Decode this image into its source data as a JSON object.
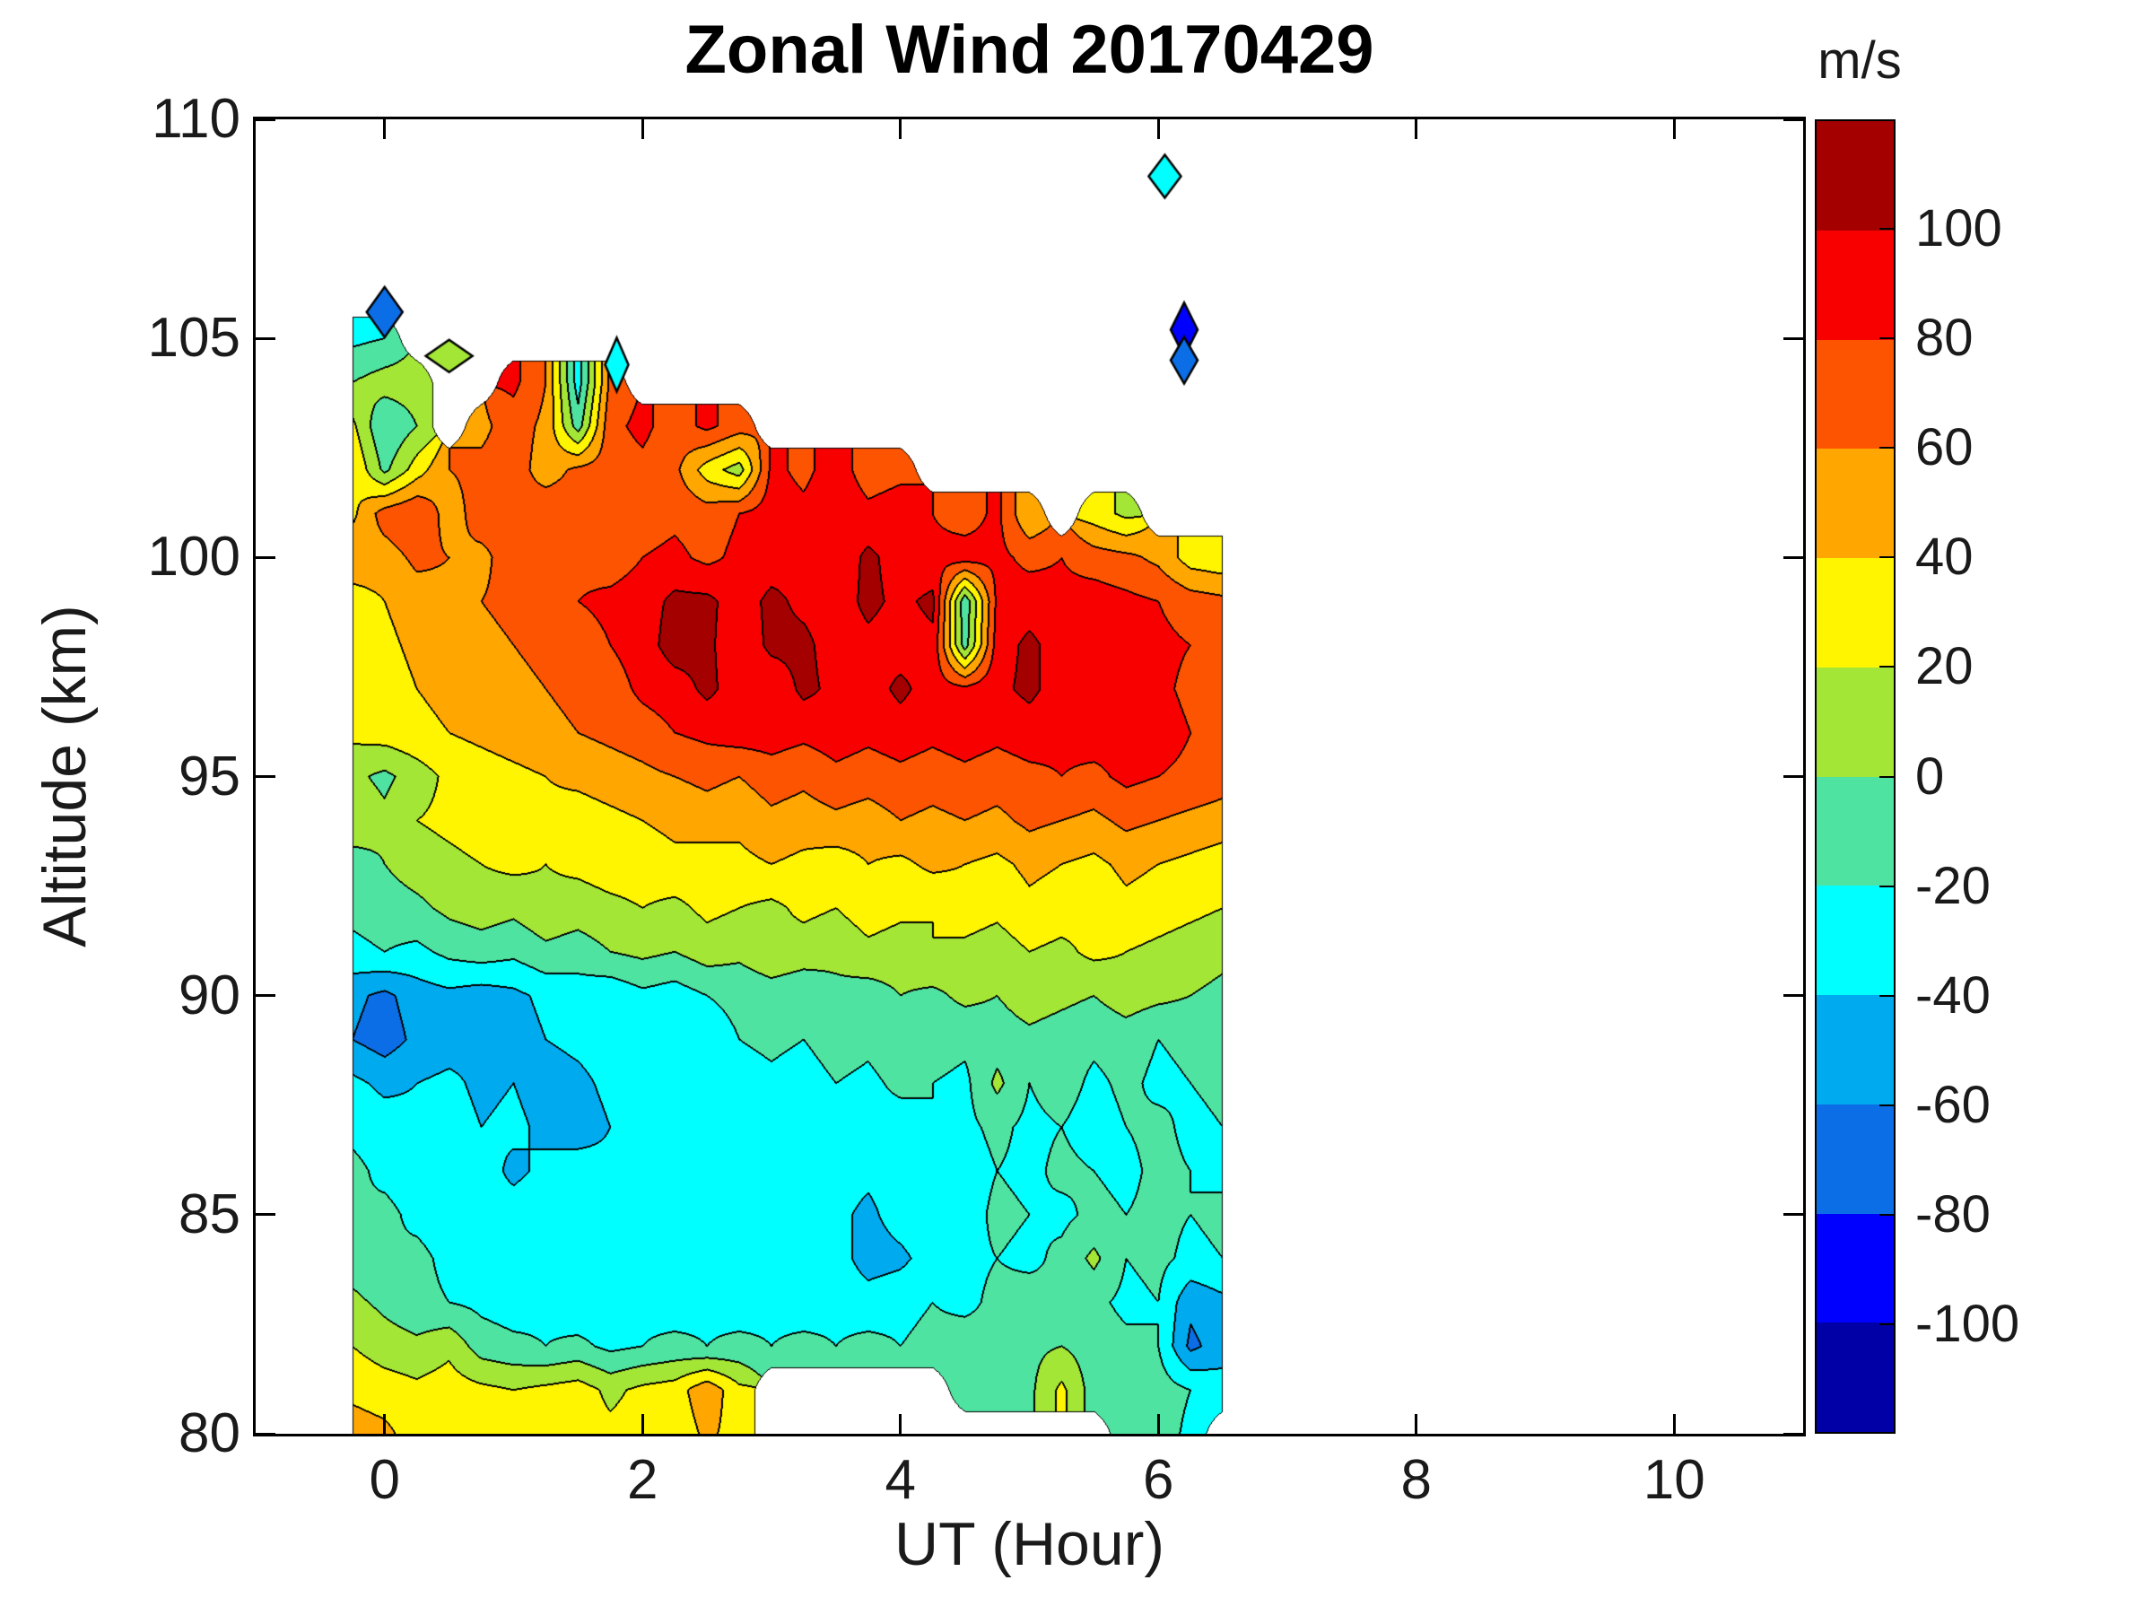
{
  "title": "Zonal Wind 20170429",
  "colorbar": {
    "unit_label": "m/s",
    "min": -120,
    "max": 120,
    "tick_values": [
      100,
      80,
      60,
      40,
      20,
      0,
      -20,
      -40,
      -60,
      -80,
      -100
    ],
    "level_edges": [
      -120,
      -100,
      -80,
      -60,
      -40,
      -20,
      0,
      20,
      40,
      60,
      80,
      100,
      120
    ],
    "colors_low_to_high": [
      "#0000A6",
      "#0000FE",
      "#0C6EE6",
      "#00AAEE",
      "#00FFFF",
      "#4FE3A1",
      "#A4E636",
      "#FFF500",
      "#FFA600",
      "#FC5400",
      "#F90000",
      "#A50000"
    ],
    "contour_line_color": "#000000"
  },
  "axes": {
    "xlabel": "UT (Hour)",
    "ylabel": "Altitude (km)",
    "x_min": -1,
    "x_max": 11,
    "x_ticks": [
      0,
      2,
      4,
      6,
      8,
      10
    ],
    "y_min": 80,
    "y_max": 110,
    "y_ticks": [
      110,
      105,
      100,
      95,
      90,
      85,
      80
    ]
  },
  "chart_data": {
    "type": "filled_contour",
    "title": "Zonal Wind 20170429",
    "xlabel": "UT (Hour)",
    "ylabel": "Altitude (km)",
    "zlabel": "m/s",
    "xlim": [
      -1,
      11
    ],
    "ylim": [
      80,
      110
    ],
    "zlim": [
      -120,
      120
    ],
    "contour_interval": 20,
    "grid_on": false,
    "x": [
      -0.25,
      0,
      0.25,
      0.5,
      0.75,
      1,
      1.25,
      1.5,
      1.75,
      2,
      2.25,
      2.5,
      2.75,
      3,
      3.25,
      3.5,
      3.75,
      4,
      4.25,
      4.5,
      4.75,
      5,
      5.25,
      5.5,
      5.75,
      6,
      6.25,
      6.5
    ],
    "altitude": [
      106,
      105,
      104,
      103,
      102,
      101,
      100,
      99,
      98,
      97,
      96,
      95,
      94,
      93,
      92,
      91,
      90,
      89,
      88,
      87,
      86,
      85,
      84,
      83,
      82,
      81,
      80
    ],
    "values": [
      [
        null,
        null,
        null,
        null,
        null,
        null,
        null,
        null,
        null,
        null,
        null,
        null,
        null,
        null,
        null,
        null,
        null,
        null,
        null,
        null,
        null,
        null,
        null,
        null,
        null,
        null,
        null,
        null
      ],
      [
        -25,
        -20,
        null,
        null,
        null,
        null,
        null,
        null,
        null,
        null,
        null,
        null,
        null,
        null,
        null,
        null,
        null,
        null,
        null,
        null,
        null,
        null,
        null,
        null,
        null,
        null,
        null,
        null
      ],
      [
        0,
        10,
        10,
        null,
        null,
        85,
        60,
        -30,
        65,
        null,
        null,
        null,
        null,
        null,
        null,
        null,
        null,
        null,
        null,
        null,
        null,
        null,
        null,
        null,
        null,
        null,
        null,
        null
      ],
      [
        25,
        -20,
        0,
        null,
        55,
        70,
        55,
        -10,
        75,
        85,
        70,
        85,
        70,
        null,
        null,
        null,
        null,
        null,
        null,
        null,
        null,
        null,
        null,
        null,
        null,
        null,
        null,
        null
      ],
      [
        40,
        -5,
        30,
        60,
        65,
        70,
        50,
        65,
        70,
        75,
        65,
        30,
        10,
        85,
        75,
        90,
        70,
        75,
        null,
        null,
        null,
        null,
        null,
        null,
        null,
        null,
        null,
        null
      ],
      [
        35,
        70,
        80,
        50,
        70,
        65,
        75,
        70,
        80,
        70,
        75,
        70,
        80,
        90,
        85,
        95,
        85,
        90,
        80,
        70,
        85,
        40,
        null,
        30,
        15,
        null,
        null,
        null
      ],
      [
        55,
        50,
        65,
        60,
        55,
        70,
        65,
        75,
        70,
        80,
        85,
        75,
        85,
        90,
        95,
        85,
        105,
        90,
        85,
        90,
        85,
        75,
        80,
        70,
        65,
        55,
        30,
        25
      ],
      [
        30,
        40,
        50,
        55,
        60,
        65,
        70,
        80,
        85,
        90,
        105,
        105,
        90,
        105,
        95,
        90,
        105,
        95,
        105,
        -15,
        85,
        90,
        85,
        90,
        85,
        80,
        70,
        65
      ],
      [
        25,
        35,
        45,
        50,
        55,
        60,
        65,
        70,
        80,
        90,
        110,
        105,
        85,
        105,
        105,
        90,
        95,
        90,
        95,
        -10,
        90,
        105,
        90,
        95,
        90,
        85,
        80,
        70
      ],
      [
        30,
        30,
        40,
        45,
        50,
        55,
        60,
        65,
        70,
        85,
        90,
        105,
        90,
        85,
        105,
        95,
        90,
        105,
        90,
        85,
        95,
        105,
        90,
        85,
        90,
        85,
        75,
        70
      ],
      [
        25,
        30,
        35,
        40,
        45,
        50,
        55,
        60,
        65,
        70,
        80,
        85,
        90,
        90,
        85,
        90,
        85,
        90,
        85,
        90,
        85,
        90,
        85,
        90,
        85,
        90,
        80,
        75
      ],
      [
        5,
        -5,
        10,
        25,
        30,
        35,
        40,
        45,
        50,
        55,
        60,
        65,
        60,
        70,
        65,
        75,
        70,
        75,
        70,
        75,
        70,
        75,
        80,
        75,
        85,
        80,
        75,
        70
      ],
      [
        15,
        5,
        20,
        25,
        30,
        30,
        35,
        30,
        35,
        40,
        45,
        50,
        45,
        55,
        50,
        55,
        50,
        60,
        55,
        60,
        55,
        65,
        60,
        55,
        65,
        60,
        55,
        50
      ],
      [
        -10,
        0,
        10,
        15,
        20,
        25,
        20,
        25,
        30,
        30,
        35,
        30,
        35,
        40,
        35,
        30,
        40,
        35,
        45,
        40,
        35,
        45,
        40,
        35,
        45,
        40,
        35,
        30
      ],
      [
        -15,
        -10,
        -5,
        5,
        10,
        5,
        15,
        10,
        15,
        20,
        15,
        25,
        20,
        15,
        25,
        20,
        30,
        25,
        20,
        30,
        25,
        35,
        30,
        25,
        35,
        30,
        25,
        20
      ],
      [
        -25,
        -20,
        -25,
        -15,
        -10,
        -15,
        -5,
        -10,
        0,
        5,
        0,
        10,
        5,
        15,
        10,
        5,
        15,
        10,
        20,
        15,
        10,
        20,
        15,
        25,
        20,
        15,
        10,
        5
      ],
      [
        -55,
        -65,
        -50,
        -45,
        -50,
        -45,
        -35,
        -30,
        -35,
        -25,
        -30,
        -20,
        -15,
        -10,
        -15,
        -5,
        -10,
        0,
        -5,
        5,
        0,
        10,
        5,
        0,
        10,
        5,
        0,
        -5
      ],
      [
        -60,
        -70,
        -55,
        -50,
        -45,
        -50,
        -40,
        -35,
        -30,
        -35,
        -25,
        -30,
        -20,
        -15,
        -20,
        -10,
        -15,
        -5,
        -10,
        -15,
        -10,
        -5,
        -10,
        -15,
        -10,
        -20,
        -15,
        -10
      ],
      [
        -35,
        -45,
        -40,
        -35,
        -45,
        -40,
        -50,
        -45,
        -35,
        -30,
        -35,
        -25,
        -30,
        -25,
        -30,
        -20,
        -25,
        -15,
        -20,
        -25,
        5,
        -20,
        -10,
        -25,
        -15,
        -25,
        -20,
        -15
      ],
      [
        -25,
        -30,
        -35,
        -30,
        -40,
        -35,
        -45,
        -50,
        -40,
        -35,
        -30,
        -35,
        -30,
        -25,
        -35,
        -30,
        -25,
        -30,
        -20,
        -25,
        -15,
        -25,
        -20,
        -30,
        -20,
        -15,
        -25,
        -20
      ],
      [
        -15,
        -25,
        -30,
        -35,
        -30,
        -45,
        -35,
        -30,
        -35,
        -30,
        -35,
        -30,
        -35,
        -30,
        -25,
        -30,
        -35,
        -30,
        -25,
        -30,
        -20,
        -25,
        -15,
        -20,
        -25,
        -15,
        -20,
        -25
      ],
      [
        -20,
        -15,
        -25,
        -30,
        -35,
        -30,
        -25,
        -35,
        -30,
        -25,
        -30,
        -35,
        -30,
        -25,
        -30,
        -35,
        -45,
        -30,
        -25,
        -30,
        -15,
        -20,
        -25,
        -15,
        -20,
        -15,
        -20,
        -15
      ],
      [
        -10,
        -20,
        -15,
        -25,
        -30,
        -25,
        -30,
        -25,
        -35,
        -30,
        -25,
        -30,
        -25,
        -30,
        -25,
        -30,
        -50,
        -45,
        -30,
        -25,
        -20,
        -25,
        -15,
        5,
        -20,
        -15,
        -25,
        -20
      ],
      [
        5,
        -5,
        -15,
        -20,
        -25,
        -30,
        -25,
        -35,
        -30,
        -25,
        -30,
        -25,
        -30,
        -25,
        -30,
        -25,
        -30,
        -25,
        -20,
        -25,
        -15,
        -10,
        -20,
        -15,
        -25,
        -20,
        -55,
        -45
      ],
      [
        20,
        10,
        5,
        15,
        -10,
        -15,
        -20,
        -15,
        -25,
        -20,
        -15,
        -20,
        -15,
        -20,
        -15,
        -20,
        -15,
        -20,
        -15,
        -10,
        -15,
        -5,
        0,
        -10,
        -15,
        -20,
        -65,
        -50
      ],
      [
        35,
        30,
        25,
        30,
        25,
        20,
        25,
        30,
        15,
        25,
        30,
        55,
        25,
        null,
        null,
        null,
        null,
        null,
        null,
        -5,
        -10,
        -5,
        25,
        -10,
        -15,
        -10,
        -20,
        -30
      ],
      [
        50,
        45,
        30,
        30,
        25,
        30,
        25,
        30,
        25,
        30,
        25,
        45,
        30,
        null,
        null,
        null,
        null,
        null,
        null,
        null,
        null,
        null,
        null,
        null,
        -10,
        -10,
        -25,
        null
      ]
    ],
    "isolated_points": [
      {
        "x": 0.0,
        "alt": 105.6,
        "value": -75,
        "rx": 20,
        "ry": 28
      },
      {
        "x": 0.5,
        "alt": 104.6,
        "value": 10,
        "rx": 26,
        "ry": 18
      },
      {
        "x": 1.8,
        "alt": 104.4,
        "value": -40,
        "rx": 13,
        "ry": 30
      },
      {
        "x": 6.05,
        "alt": 108.7,
        "value": -30,
        "rx": 18,
        "ry": 24
      },
      {
        "x": 6.2,
        "alt": 105.2,
        "value": -95,
        "rx": 15,
        "ry": 30
      },
      {
        "x": 6.2,
        "alt": 104.5,
        "value": -70,
        "rx": 15,
        "ry": 26
      }
    ]
  }
}
